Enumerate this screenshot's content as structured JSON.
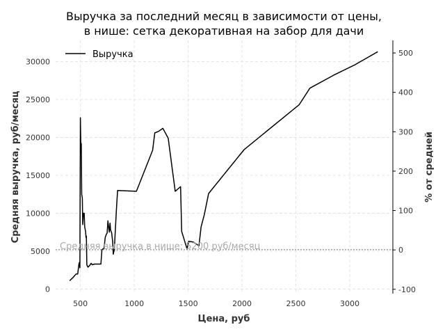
{
  "chart_data": {
    "type": "line",
    "title_line1": "Выручка за последний месяц в зависимости от цены,",
    "title_line2": "в нише: сетка декоративная на забор для дачи",
    "xlabel": "Цена, руб",
    "ylabel": "Средняя выручка, руб/месяц",
    "y2label": "% от средней",
    "xlim": [
      270,
      3400
    ],
    "ylim": [
      -600,
      32800
    ],
    "y2lim": [
      -111,
      532
    ],
    "x_ticks": [
      500,
      1000,
      1500,
      2000,
      2500,
      3000
    ],
    "y_ticks": [
      0,
      5000,
      10000,
      15000,
      20000,
      25000,
      30000
    ],
    "y2_ticks": [
      -100,
      0,
      100,
      200,
      300,
      400,
      500
    ],
    "grid": true,
    "legend_position": "top-left",
    "average_value": 5200,
    "average_annotation": "Средняя выручка в нише: 5200 руб/месяц",
    "series": [
      {
        "name": "Выручка",
        "color": "#000000",
        "points": [
          [
            400,
            1100
          ],
          [
            430,
            1500
          ],
          [
            460,
            2000
          ],
          [
            475,
            2000
          ],
          [
            485,
            3200
          ],
          [
            490,
            3500
          ],
          [
            495,
            2800
          ],
          [
            500,
            22600
          ],
          [
            505,
            18000
          ],
          [
            508,
            19200
          ],
          [
            512,
            12500
          ],
          [
            518,
            12000
          ],
          [
            522,
            8500
          ],
          [
            528,
            10000
          ],
          [
            535,
            10000
          ],
          [
            540,
            8200
          ],
          [
            548,
            7600
          ],
          [
            552,
            6800
          ],
          [
            555,
            7000
          ],
          [
            560,
            3200
          ],
          [
            570,
            2900
          ],
          [
            585,
            3100
          ],
          [
            600,
            3400
          ],
          [
            610,
            3200
          ],
          [
            630,
            3300
          ],
          [
            690,
            3300
          ],
          [
            700,
            5200
          ],
          [
            720,
            5400
          ],
          [
            730,
            6800
          ],
          [
            740,
            7200
          ],
          [
            748,
            7400
          ],
          [
            755,
            9000
          ],
          [
            762,
            8200
          ],
          [
            768,
            7500
          ],
          [
            775,
            8700
          ],
          [
            780,
            7800
          ],
          [
            790,
            7400
          ],
          [
            800,
            6200
          ],
          [
            805,
            4600
          ],
          [
            815,
            5200
          ],
          [
            835,
            10600
          ],
          [
            845,
            13000
          ],
          [
            1020,
            12900
          ],
          [
            1170,
            18300
          ],
          [
            1190,
            20600
          ],
          [
            1225,
            20800
          ],
          [
            1265,
            21200
          ],
          [
            1315,
            19900
          ],
          [
            1380,
            12900
          ],
          [
            1430,
            13500
          ],
          [
            1440,
            7600
          ],
          [
            1490,
            5300
          ],
          [
            1505,
            6300
          ],
          [
            1550,
            6200
          ],
          [
            1600,
            5700
          ],
          [
            1620,
            8200
          ],
          [
            1650,
            9800
          ],
          [
            1690,
            12600
          ],
          [
            2020,
            18400
          ],
          [
            2530,
            24300
          ],
          [
            2630,
            26500
          ],
          [
            2850,
            28200
          ],
          [
            3050,
            29600
          ],
          [
            3260,
            31300
          ]
        ]
      }
    ]
  }
}
